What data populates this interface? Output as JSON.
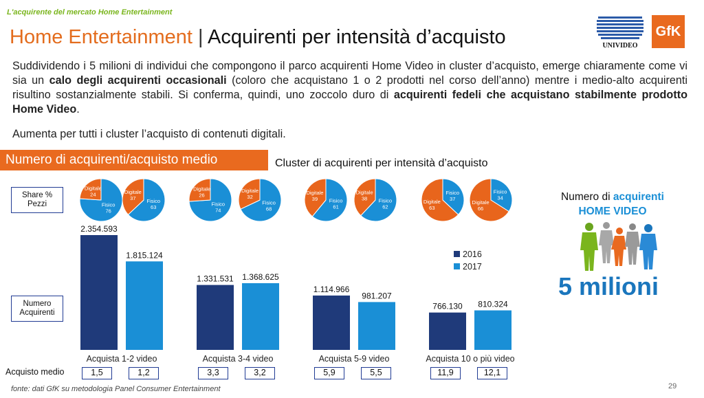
{
  "header": {
    "kicker": "L'acquirente del mercato Home Entertainment",
    "title_part1": "Home Entertainment",
    "title_sep": " | ",
    "title_part2": "Acquirenti per intensità d’acquisto",
    "logos": [
      "UNIVIDEO",
      "GfK"
    ]
  },
  "intro": {
    "p1_a": "Suddividendo i 5 milioni di individui che compongono il parco acquirenti Home Video in cluster d’acquisto, emerge chiaramente come vi sia un ",
    "p1_b": "calo degli acquirenti occasionali",
    "p1_c": " (coloro che acquistano 1 o 2 prodotti nel corso dell’anno) mentre i medio-alto acquirenti risultino sostanzialmente stabili. Si conferma, quindi, uno zoccolo duro di ",
    "p1_d": "acquirenti fedeli che acquistano stabilmente prodotto Home Video",
    "p1_e": ".",
    "p2": "Aumenta per tutti i cluster l’acquisto di contenuti digitali."
  },
  "section_tab": "Numero di acquirenti/acquisto medio",
  "cluster_title": "Cluster di acquirenti per intensità d’acquisto",
  "labels": {
    "share": "Share % Pezzi",
    "numero": "Numero Acquirenti",
    "acquisto_medio": "Acquisto medio"
  },
  "right_panel": {
    "line1_a": "Numero di ",
    "line1_b": "acquirenti",
    "line2": "HOME VIDEO",
    "big": "5 milioni"
  },
  "footnote": "fonte: dati GfK su metodologia Panel Consumer Entertainment",
  "page_number": "29",
  "colors": {
    "s2016": "#1f3a7a",
    "s2017": "#1a8fd6",
    "digitale": "#e8651c",
    "fisico": "#1a8fd6",
    "accent": "#e96a1f"
  },
  "chart_data": {
    "type": "bar",
    "categories": [
      "Acquista 1-2 video",
      "Acquista 3-4 video",
      "Acquista 5-9 video",
      "Acquista 10 o più video"
    ],
    "series": [
      {
        "name": "2016",
        "values": [
          2354593,
          1331531,
          1114966,
          766130
        ],
        "labels": [
          "2.354.593",
          "1.331.531",
          "1.114.966",
          "766.130"
        ]
      },
      {
        "name": "2017",
        "values": [
          1815124,
          1368625,
          981207,
          810324
        ],
        "labels": [
          "1.815.124",
          "1.368.625",
          "981.207",
          "810.324"
        ]
      }
    ],
    "acquisto_medio": [
      [
        "1,5",
        "1,2"
      ],
      [
        "3,3",
        "3,2"
      ],
      [
        "5,9",
        "5,5"
      ],
      [
        "11,9",
        "12,1"
      ]
    ],
    "share_pezzi": [
      [
        {
          "digitale": 24,
          "fisico": 76
        },
        {
          "digitale": 37,
          "fisico": 63
        }
      ],
      [
        {
          "digitale": 26,
          "fisico": 74
        },
        {
          "digitale": 32,
          "fisico": 68
        }
      ],
      [
        {
          "digitale": 39,
          "fisico": 61
        },
        {
          "digitale": 38,
          "fisico": 62
        }
      ],
      [
        {
          "digitale": 63,
          "fisico": 37
        },
        {
          "digitale": 66,
          "fisico": 34
        }
      ]
    ],
    "pie_labels": {
      "digitale": "Digitale",
      "fisico": "Fisico"
    },
    "ylim": [
      0,
      2400000
    ]
  }
}
